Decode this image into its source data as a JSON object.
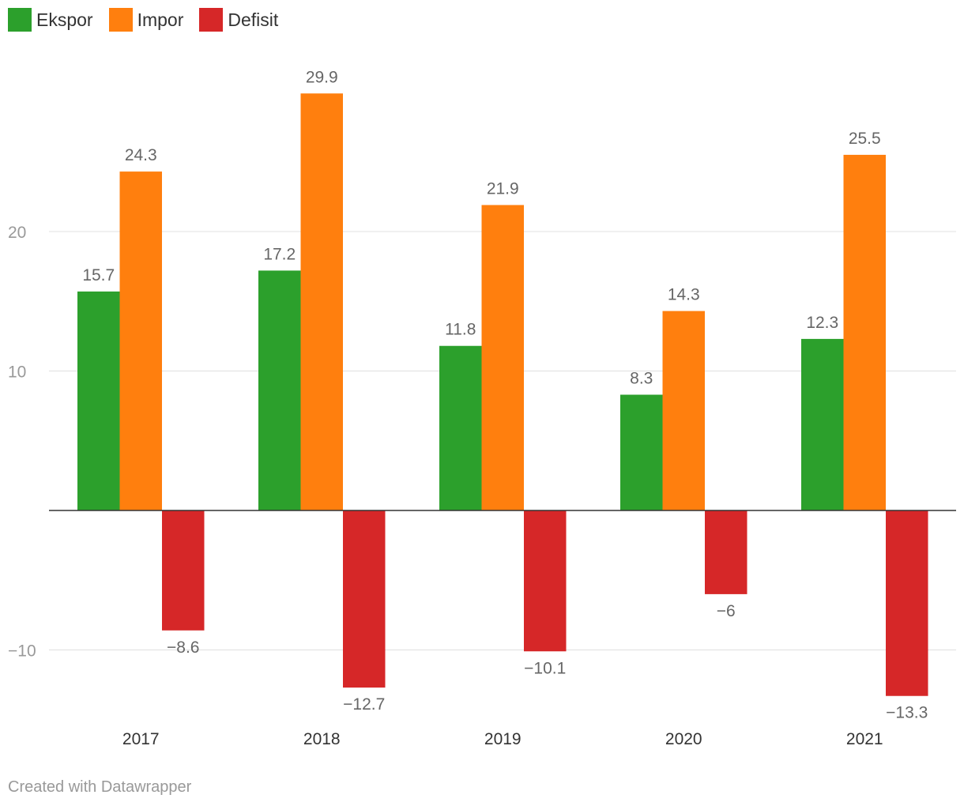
{
  "chart_data": {
    "type": "bar",
    "categories": [
      "2017",
      "2018",
      "2019",
      "2020",
      "2021"
    ],
    "series": [
      {
        "name": "Ekspor",
        "color": "#2ca02c",
        "values": [
          15.7,
          17.2,
          11.8,
          8.3,
          12.3
        ]
      },
      {
        "name": "Impor",
        "color": "#ff7f0e",
        "values": [
          24.3,
          29.9,
          21.9,
          14.3,
          25.5
        ]
      },
      {
        "name": "Defisit",
        "color": "#d62728",
        "values": [
          -8.6,
          -12.7,
          -10.1,
          -6,
          -13.3
        ]
      }
    ],
    "value_labels": [
      [
        "15.7",
        "17.2",
        "11.8",
        "8.3",
        "12.3"
      ],
      [
        "24.3",
        "29.9",
        "21.9",
        "14.3",
        "25.5"
      ],
      [
        "−8.6",
        "−12.7",
        "−10.1",
        "−6",
        "−13.3"
      ]
    ],
    "yticks": [
      -10,
      10,
      20
    ],
    "ytick_labels": [
      "−10",
      "10",
      "20"
    ],
    "ylim": [
      -15,
      35
    ],
    "grid": true,
    "legend_position": "top-left"
  },
  "footer": "Created with Datawrapper"
}
